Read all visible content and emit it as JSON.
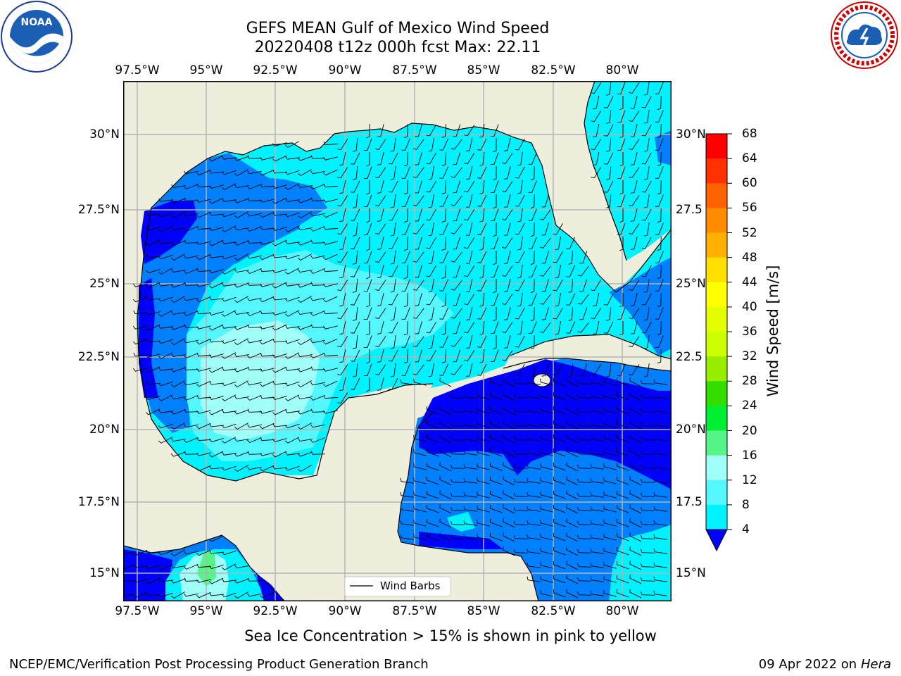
{
  "header": {
    "title_line1": "GEFS MEAN Gulf of Mexico Wind Speed",
    "title_line2": "20220408 t12z 000h fcst   Max: 22.11"
  },
  "logos": {
    "left": {
      "name": "NOAA",
      "ring_text": "NATIONAL OCEANIC AND ATMOSPHERIC ADMINISTRATION • U.S. DEPARTMENT OF COMMERCE"
    },
    "right": {
      "name": "NATIONAL WEATHER SERVICE"
    }
  },
  "axes": {
    "lon_labels": [
      "97.5°W",
      "95°W",
      "92.5°W",
      "90°W",
      "87.5°W",
      "85°W",
      "82.5°W",
      "80°W"
    ],
    "lat_labels_left": [
      "30°N",
      "27.5°N",
      "25°N",
      "22.5°N",
      "20°N",
      "17.5°N",
      "15°N"
    ],
    "lat_labels_right": [
      "30°N",
      "27.5",
      "25°N",
      "22.5",
      "20°N",
      "17.5",
      "15°N"
    ]
  },
  "legend": {
    "label": "Wind Barbs"
  },
  "colorbar": {
    "label": "Wind Speed [m/s]",
    "ticks": [
      "68",
      "64",
      "60",
      "56",
      "52",
      "48",
      "44",
      "40",
      "36",
      "32",
      "28",
      "24",
      "20",
      "16",
      "12",
      "8",
      "4"
    ],
    "colors_top_to_bottom": [
      "#ff0000",
      "#ff3000",
      "#ff6000",
      "#ff8c00",
      "#ffb000",
      "#ffe000",
      "#ffff00",
      "#e6ff00",
      "#ccff00",
      "#99ee00",
      "#33dd00",
      "#00ee33",
      "#55f588",
      "#a0fff8",
      "#55f7ff",
      "#00f2ff",
      "#0080ff"
    ],
    "extend_color": "#0000ff"
  },
  "colors": {
    "land": "#efeedd",
    "ocean_4_8": "#0080ff",
    "ocean_lt4": "#0000ff",
    "ocean_8_12": "#00f2ff",
    "ocean_12_16": "#55f7ff",
    "ocean_16_20": "#a0fff8",
    "ocean_20_24": "#55f588",
    "grid": "#b4b4b4"
  },
  "footer": {
    "note": "Sea Ice Concentration > 15% is shown in pink to yellow",
    "left": "NCEP/EMC/Verification Post Processing Product Generation Branch",
    "right_prefix": "09 Apr 2022 on ",
    "right_machine": "Hera"
  }
}
